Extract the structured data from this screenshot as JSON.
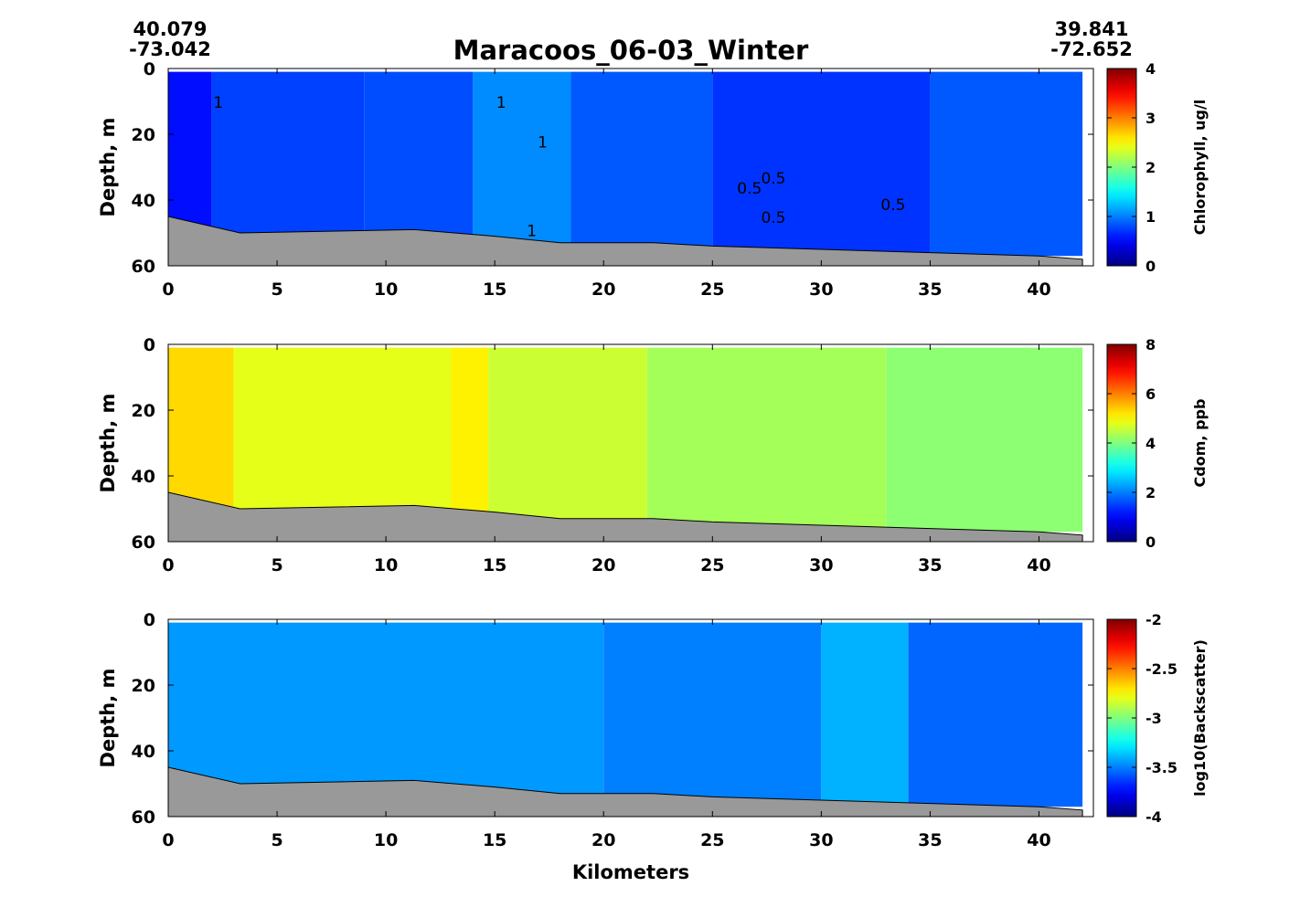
{
  "title": "Maracoos_06-03_Winter",
  "start_coord": {
    "lat": "40.079",
    "lon": "-73.042"
  },
  "end_coord": {
    "lat": "39.841",
    "lon": "-72.652"
  },
  "xlabel": "Kilometers",
  "colors": {
    "bathymetry": "#999999",
    "colormap": [
      "#00007f",
      "#0000ff",
      "#007fff",
      "#00ffff",
      "#7fff7f",
      "#ffff00",
      "#ff7f00",
      "#ff0000",
      "#7f0000"
    ]
  },
  "chart_data": [
    {
      "type": "heatmap",
      "name": "chlorophyll",
      "ylabel": "Depth, m",
      "colorbar_label": "Chlorophyll, ug/l",
      "x_ticks": [
        0,
        5,
        10,
        15,
        20,
        25,
        30,
        35,
        40
      ],
      "y_ticks": [
        0,
        20,
        40,
        60
      ],
      "xlim": [
        0,
        42.5
      ],
      "ylim": [
        60,
        0
      ],
      "clim": [
        0,
        4
      ],
      "cbar_ticks": [
        "0",
        "1",
        "2",
        "3",
        "4"
      ],
      "bathymetry": [
        [
          0,
          45
        ],
        [
          3.3,
          50
        ],
        [
          11.3,
          49
        ],
        [
          15,
          51
        ],
        [
          18,
          53
        ],
        [
          22.3,
          53
        ],
        [
          25,
          54
        ],
        [
          30,
          55
        ],
        [
          35,
          56
        ],
        [
          40,
          57
        ],
        [
          42,
          58
        ]
      ],
      "sections": [
        {
          "x": [
            0,
            2
          ],
          "value": 0.55
        },
        {
          "x": [
            2,
            9
          ],
          "value": 0.75
        },
        {
          "x": [
            9,
            14
          ],
          "value": 0.8
        },
        {
          "x": [
            14,
            18.5
          ],
          "value": 1.05
        },
        {
          "x": [
            18.5,
            25
          ],
          "value": 0.85
        },
        {
          "x": [
            25,
            35
          ],
          "value": 0.7
        },
        {
          "x": [
            35,
            42
          ],
          "value": 0.85
        }
      ],
      "contour_labels": [
        {
          "text": "1",
          "x": 2.3,
          "y": 12
        },
        {
          "text": "1",
          "x": 15.3,
          "y": 12
        },
        {
          "text": "1",
          "x": 17.2,
          "y": 24
        },
        {
          "text": "1",
          "x": 16.7,
          "y": 51
        },
        {
          "text": "0.5",
          "x": 27.8,
          "y": 35
        },
        {
          "text": "0.5",
          "x": 26.7,
          "y": 38
        },
        {
          "text": "0.5",
          "x": 27.8,
          "y": 47
        },
        {
          "text": "0.5",
          "x": 33.3,
          "y": 43
        }
      ]
    },
    {
      "type": "heatmap",
      "name": "cdom",
      "ylabel": "Depth, m",
      "colorbar_label": "Cdom, ppb",
      "x_ticks": [
        0,
        5,
        10,
        15,
        20,
        25,
        30,
        35,
        40
      ],
      "y_ticks": [
        0,
        20,
        40,
        60
      ],
      "xlim": [
        0,
        42.5
      ],
      "ylim": [
        60,
        0
      ],
      "clim": [
        0,
        8
      ],
      "cbar_ticks": [
        "0",
        "2",
        "4",
        "6",
        "8"
      ],
      "bathymetry": [
        [
          0,
          45
        ],
        [
          3.3,
          50
        ],
        [
          11.3,
          49
        ],
        [
          15,
          51
        ],
        [
          18,
          53
        ],
        [
          22.3,
          53
        ],
        [
          25,
          54
        ],
        [
          30,
          55
        ],
        [
          35,
          56
        ],
        [
          40,
          57
        ],
        [
          42,
          58
        ]
      ],
      "sections": [
        {
          "x": [
            0,
            3
          ],
          "value": 5.3
        },
        {
          "x": [
            3,
            13
          ],
          "value": 4.8
        },
        {
          "x": [
            13,
            14.7
          ],
          "value": 5.1
        },
        {
          "x": [
            14.7,
            22
          ],
          "value": 4.6
        },
        {
          "x": [
            22,
            33
          ],
          "value": 4.3
        },
        {
          "x": [
            33,
            42
          ],
          "value": 4.1
        }
      ],
      "contour_labels": []
    },
    {
      "type": "heatmap",
      "name": "backscatter",
      "ylabel": "Depth, m",
      "colorbar_label": "log10(Backscatter)",
      "x_ticks": [
        0,
        5,
        10,
        15,
        20,
        25,
        30,
        35,
        40
      ],
      "y_ticks": [
        0,
        20,
        40,
        60
      ],
      "xlim": [
        0,
        42.5
      ],
      "ylim": [
        60,
        0
      ],
      "clim": [
        -4,
        -2
      ],
      "cbar_ticks": [
        "-4",
        "-3.5",
        "-3",
        "-2.5",
        "-2"
      ],
      "bathymetry": [
        [
          0,
          45
        ],
        [
          3.3,
          50
        ],
        [
          11.3,
          49
        ],
        [
          15,
          51
        ],
        [
          18,
          53
        ],
        [
          22.3,
          53
        ],
        [
          25,
          54
        ],
        [
          30,
          55
        ],
        [
          35,
          56
        ],
        [
          40,
          57
        ],
        [
          42,
          58
        ]
      ],
      "sections": [
        {
          "x": [
            0,
            20
          ],
          "value": -3.45
        },
        {
          "x": [
            20,
            30
          ],
          "value": -3.5
        },
        {
          "x": [
            30,
            34
          ],
          "value": -3.4
        },
        {
          "x": [
            34,
            42
          ],
          "value": -3.55
        }
      ],
      "contour_labels": []
    }
  ]
}
